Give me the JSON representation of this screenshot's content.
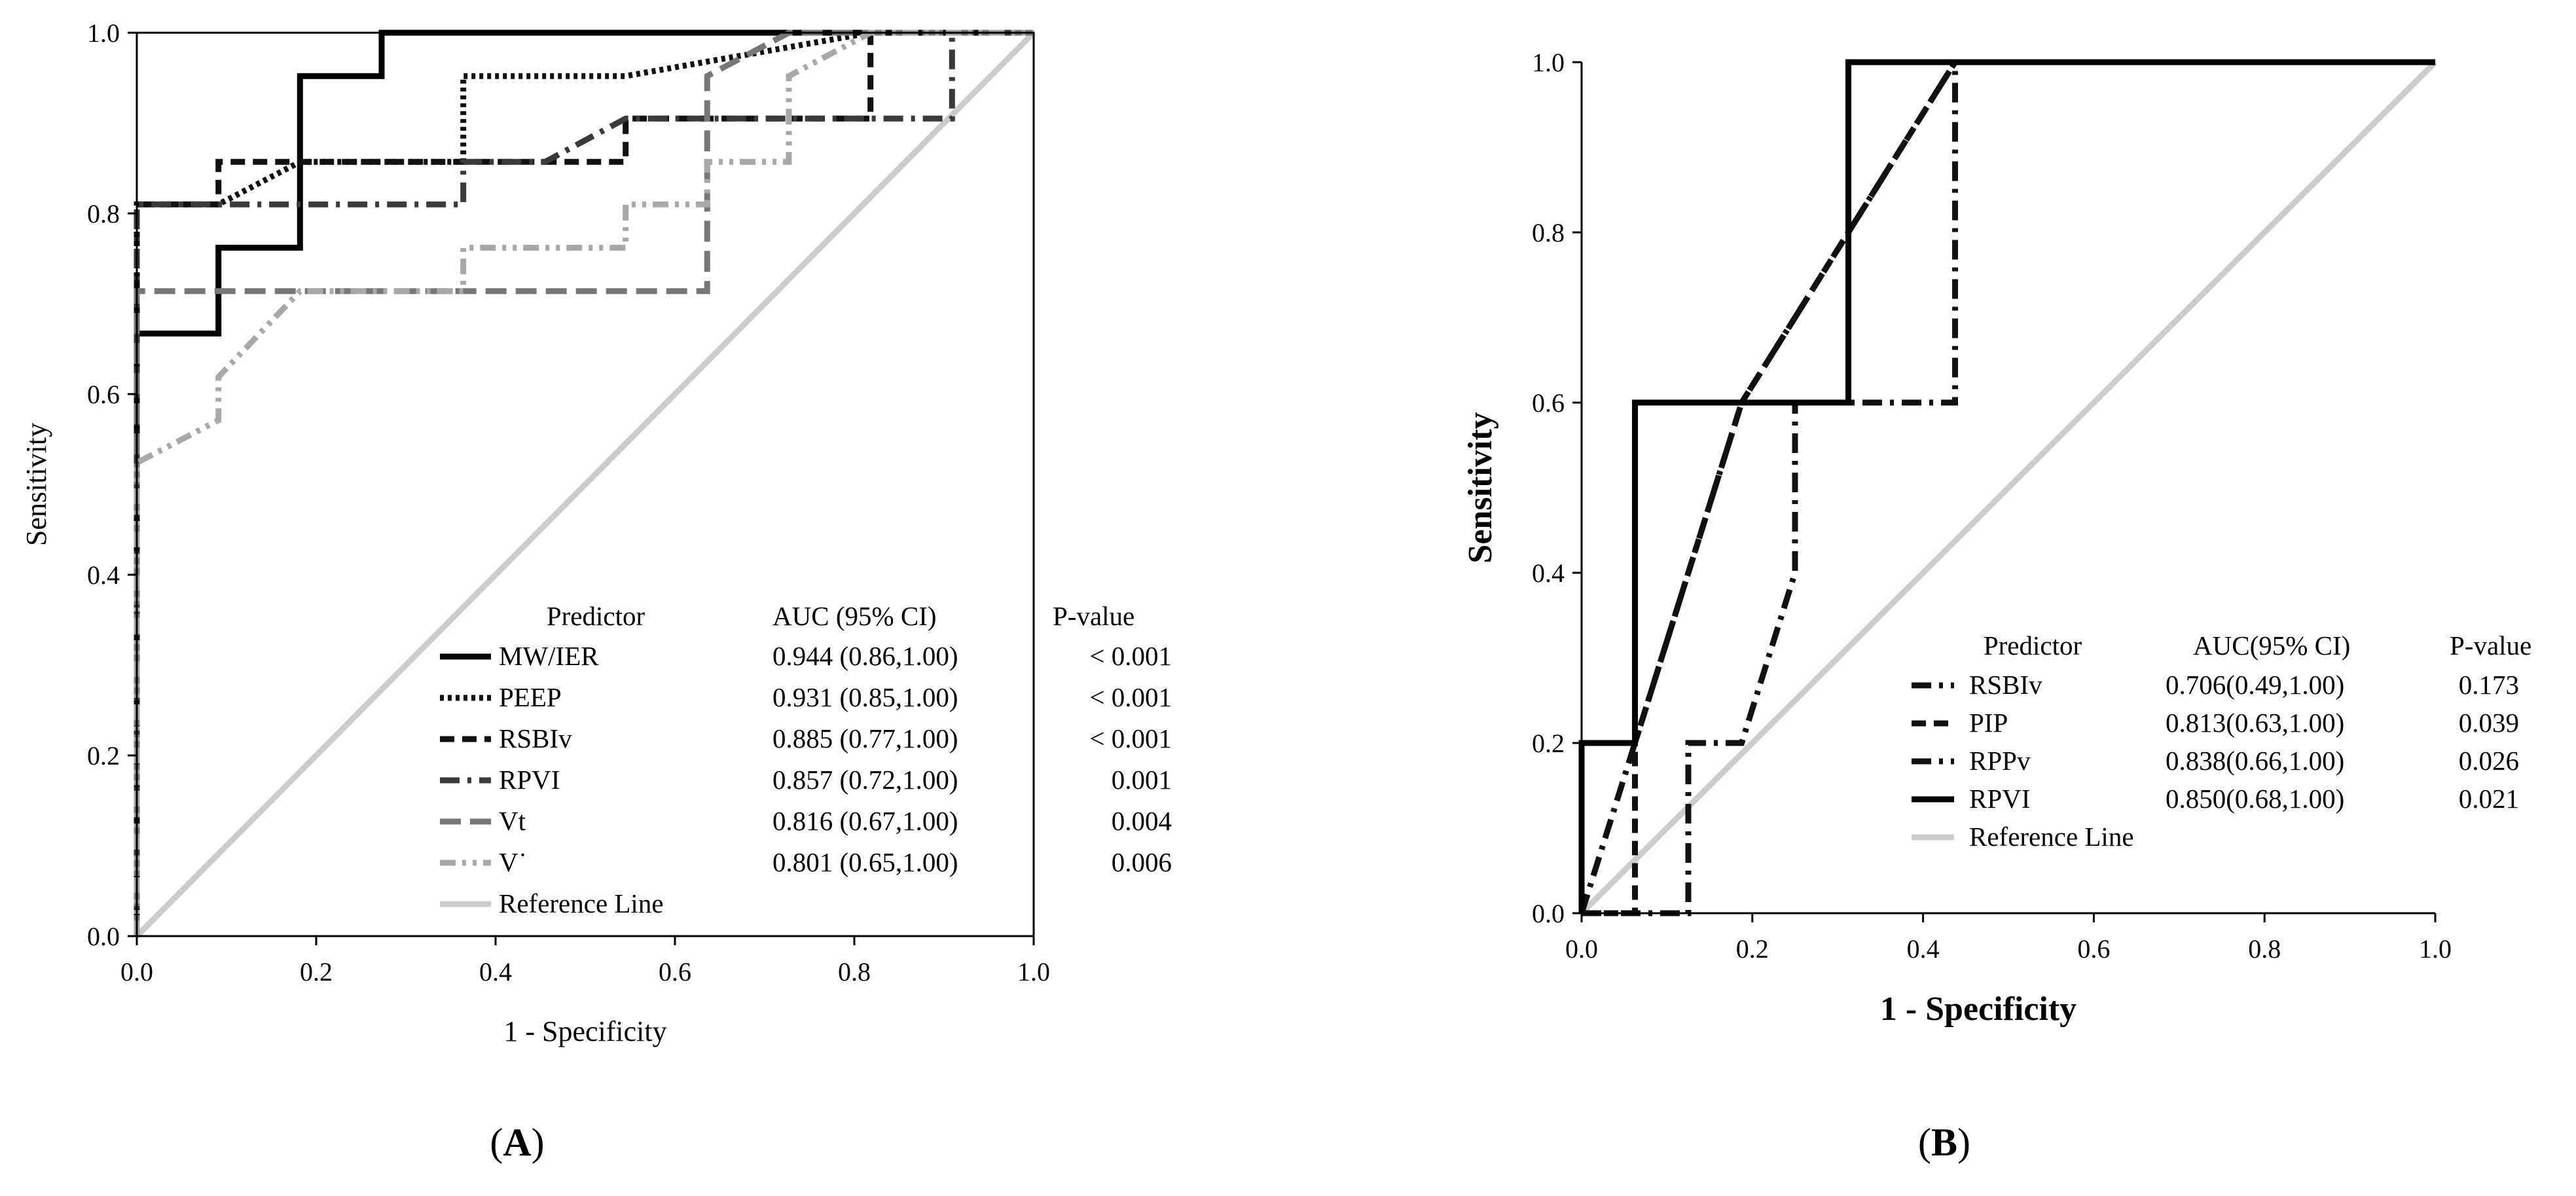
{
  "chart_data": [
    {
      "panel": "A",
      "type": "line",
      "xlabel": "1 - Specificity",
      "ylabel": "Sensitivity",
      "xlim": [
        0,
        1
      ],
      "ylim": [
        0,
        1
      ],
      "xticks": [
        "0.0",
        "0.2",
        "0.4",
        "0.6",
        "0.8",
        "1.0"
      ],
      "yticks": [
        "0.0",
        "0.2",
        "0.4",
        "0.6",
        "0.8",
        "1.0"
      ],
      "legend_headers": {
        "predictor": "Predictor",
        "auc": "AUC (95% CI)",
        "p": "P-value"
      },
      "legend_placement": "bottom-right",
      "series": [
        {
          "name": "MW/IER",
          "auc": "0.944 (0.86,1.00)",
          "p": "< 0.001",
          "color": "#000000",
          "style": "solid",
          "points": [
            [
              0,
              0
            ],
            [
              0,
              0.667
            ],
            [
              0.091,
              0.667
            ],
            [
              0.091,
              0.762
            ],
            [
              0.182,
              0.762
            ],
            [
              0.182,
              0.952
            ],
            [
              0.273,
              0.952
            ],
            [
              0.273,
              1.0
            ],
            [
              1,
              1
            ]
          ]
        },
        {
          "name": "PEEP",
          "auc": "0.931 (0.85,1.00)",
          "p": "< 0.001",
          "color": "#111111",
          "style": "dotted",
          "points": [
            [
              0,
              0
            ],
            [
              0,
              0.81
            ],
            [
              0.091,
              0.81
            ],
            [
              0.182,
              0.857
            ],
            [
              0.364,
              0.857
            ],
            [
              0.364,
              0.952
            ],
            [
              0.545,
              0.952
            ],
            [
              0.818,
              1.0
            ],
            [
              1,
              1
            ]
          ]
        },
        {
          "name": "RSBIv",
          "auc": "0.885 (0.77,1.00)",
          "p": "< 0.001",
          "color": "#111111",
          "style": "dashed",
          "points": [
            [
              0,
              0
            ],
            [
              0,
              0.81
            ],
            [
              0.091,
              0.81
            ],
            [
              0.091,
              0.857
            ],
            [
              0.545,
              0.857
            ],
            [
              0.545,
              0.905
            ],
            [
              0.818,
              0.905
            ],
            [
              0.818,
              0.952
            ],
            [
              0.818,
              1.0
            ],
            [
              1,
              1
            ]
          ]
        },
        {
          "name": "RPVI",
          "auc": "0.857 (0.72,1.00)",
          "p": "0.001",
          "color": "#3a3a3a",
          "style": "dashdot",
          "points": [
            [
              0,
              0
            ],
            [
              0,
              0.81
            ],
            [
              0.364,
              0.81
            ],
            [
              0.364,
              0.857
            ],
            [
              0.455,
              0.857
            ],
            [
              0.545,
              0.905
            ],
            [
              0.909,
              0.905
            ],
            [
              0.909,
              1.0
            ],
            [
              1,
              1
            ]
          ]
        },
        {
          "name": "Vt",
          "auc": "0.816 (0.67,1.00)",
          "p": "0.004",
          "color": "#777777",
          "style": "longdash",
          "points": [
            [
              0,
              0
            ],
            [
              0,
              0.714
            ],
            [
              0.636,
              0.714
            ],
            [
              0.636,
              0.952
            ],
            [
              0.727,
              1.0
            ],
            [
              1,
              1
            ]
          ]
        },
        {
          "name": "V˙",
          "auc": "0.801 (0.65,1.00)",
          "p": "0.006",
          "color": "#a8a8a8",
          "style": "dashdotdot",
          "points": [
            [
              0,
              0
            ],
            [
              0,
              0.524
            ],
            [
              0.091,
              0.571
            ],
            [
              0.091,
              0.619
            ],
            [
              0.182,
              0.714
            ],
            [
              0.364,
              0.714
            ],
            [
              0.364,
              0.762
            ],
            [
              0.545,
              0.762
            ],
            [
              0.545,
              0.81
            ],
            [
              0.636,
              0.81
            ],
            [
              0.636,
              0.857
            ],
            [
              0.727,
              0.857
            ],
            [
              0.727,
              0.952
            ],
            [
              0.818,
              1.0
            ],
            [
              1,
              1
            ]
          ]
        },
        {
          "name": "Reference Line",
          "auc": "",
          "p": "",
          "color": "#cccccc",
          "style": "reference",
          "points": [
            [
              0,
              0
            ],
            [
              1,
              1
            ]
          ]
        }
      ]
    },
    {
      "panel": "B",
      "type": "line",
      "xlabel": "1 - Specificity",
      "ylabel": "Sensitivity",
      "xlim": [
        0,
        1
      ],
      "ylim": [
        0,
        1
      ],
      "xticks": [
        "0.0",
        "0.2",
        "0.4",
        "0.6",
        "0.8",
        "1.0"
      ],
      "yticks": [
        "0.0",
        "0.2",
        "0.4",
        "0.6",
        "0.8",
        "1.0"
      ],
      "legend_headers": {
        "predictor": "Predictor",
        "auc": "AUC(95% CI)",
        "p": "P-value"
      },
      "legend_placement": "bottom-right",
      "series": [
        {
          "name": "RSBIv",
          "auc": "0.706(0.49,1.00)",
          "p": "0.173",
          "color": "#111111",
          "style": "dashdot",
          "points": [
            [
              0,
              0
            ],
            [
              0.125,
              0
            ],
            [
              0.125,
              0.2
            ],
            [
              0.1875,
              0.2
            ],
            [
              0.25,
              0.4
            ],
            [
              0.25,
              0.6
            ],
            [
              0.4375,
              0.6
            ],
            [
              0.4375,
              1.0
            ],
            [
              1,
              1
            ]
          ]
        },
        {
          "name": "PIP",
          "auc": "0.813(0.63,1.00)",
          "p": "0.039",
          "color": "#111111",
          "style": "dashed",
          "points": [
            [
              0,
              0
            ],
            [
              0.0625,
              0
            ],
            [
              0.0625,
              0.2
            ],
            [
              0.1875,
              0.6
            ],
            [
              0.3125,
              0.8
            ],
            [
              0.4375,
              1.0
            ],
            [
              1,
              1
            ]
          ]
        },
        {
          "name": "RPPv",
          "auc": "0.838(0.66,1.00)",
          "p": "0.026",
          "color": "#111111",
          "style": "dashdot",
          "points": [
            [
              0,
              0
            ],
            [
              0.0625,
              0.2
            ],
            [
              0.125,
              0.4
            ],
            [
              0.1875,
              0.6
            ],
            [
              0.25,
              0.7
            ],
            [
              0.3125,
              0.8
            ],
            [
              0.4375,
              1.0
            ],
            [
              1,
              1
            ]
          ]
        },
        {
          "name": "RPVI",
          "auc": "0.850(0.68,1.00)",
          "p": "0.021",
          "color": "#000000",
          "style": "solid",
          "points": [
            [
              0,
              0
            ],
            [
              0,
              0.2
            ],
            [
              0.0625,
              0.2
            ],
            [
              0.0625,
              0.6
            ],
            [
              0.3125,
              0.6
            ],
            [
              0.3125,
              1.0
            ],
            [
              1,
              1
            ]
          ]
        },
        {
          "name": "Reference Line",
          "auc": "",
          "p": "",
          "color": "#cccccc",
          "style": "reference",
          "points": [
            [
              0,
              0
            ],
            [
              1,
              1
            ]
          ]
        }
      ]
    }
  ],
  "panels": [
    {
      "label_open": "(",
      "label_letter": "A",
      "label_close": ")"
    },
    {
      "label_open": "(",
      "label_letter": "B",
      "label_close": ")"
    }
  ]
}
